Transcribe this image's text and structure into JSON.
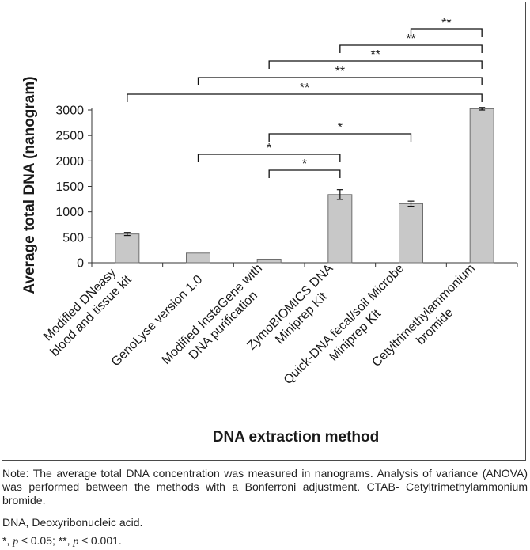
{
  "chart_data": {
    "type": "bar",
    "categories": [
      [
        "Modified DNeasy",
        "blood and tissue kit"
      ],
      [
        "GenoLyse version 1.0"
      ],
      [
        "Modified InstaGene with",
        "DNA purification"
      ],
      [
        "ZymoBIOMICS DNA",
        "Miniprep Kit"
      ],
      [
        "Quick-DNA fecal/soil Microbe",
        "Miniprep Kit"
      ],
      [
        "Cetyltrimethylammonium",
        "bromide"
      ]
    ],
    "values": [
      565,
      190,
      70,
      1340,
      1160,
      3025
    ],
    "errors": [
      30,
      0,
      0,
      95,
      50,
      25
    ],
    "ylim": [
      0,
      3000
    ],
    "yticks": [
      0,
      500,
      1000,
      1500,
      2000,
      2500,
      3000
    ],
    "ylabel": "Average total DNA (nanogram)",
    "xlabel": "DNA extraction method",
    "bar_color": "#c8c8c8",
    "bar_edge": "#6e6e6e",
    "significance": [
      {
        "from": 4,
        "to": 5,
        "label": "**"
      },
      {
        "from": 3,
        "to": 5,
        "label": "**"
      },
      {
        "from": 2,
        "to": 5,
        "label": "**"
      },
      {
        "from": 1,
        "to": 5,
        "label": "**"
      },
      {
        "from": 0,
        "to": 5,
        "label": "**"
      },
      {
        "from": 2,
        "to": 4,
        "label": "*"
      },
      {
        "from": 1,
        "to": 3,
        "label": "*"
      },
      {
        "from": 2,
        "to": 3,
        "label": "*"
      }
    ]
  },
  "notes": {
    "main": "Note: The average total DNA concentration was measured in nanograms. Analysis of variance (ANOVA) was performed between the methods with a Bonferroni adjustment. CTAB- Cetyltrimethylammonium bromide.",
    "dna": "DNA, Deoxyribonucleic acid.",
    "sig_single": "*,",
    "p_symbol": "p",
    "sig_single_threshold": "≤ 0.05;",
    "sig_double": "**,",
    "sig_double_threshold": "≤ 0.001."
  }
}
